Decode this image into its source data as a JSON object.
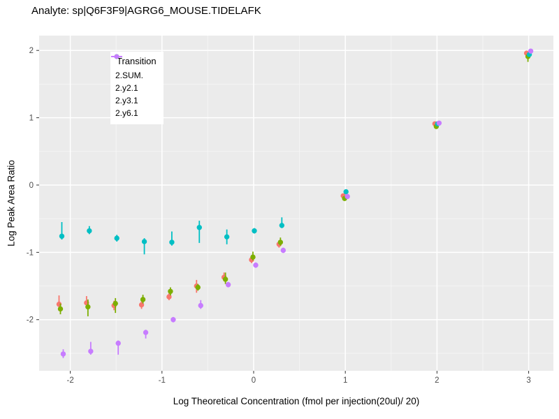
{
  "colors": {
    "panel_bg": "#EBEBEB",
    "grid_major": "#FFFFFF",
    "grid_minor": "#FFFFFF",
    "tick_mark": "#333333",
    "tick_text": "#4D4D4D",
    "outer_bg": "#FFFFFF"
  },
  "chart_data": {
    "type": "scatter",
    "subtype": "pointrange-with-error-bars",
    "title": "Analyte: sp|Q6F3F9|AGRG6_MOUSE.TIDELAFK",
    "xlabel": "Log Theoretical Concentration (fmol per injection(20ul)/ 20)",
    "ylabel": "Log Peak Area Ratio",
    "xlim": [
      -2.34,
      3.27
    ],
    "ylim": [
      -2.76,
      2.22
    ],
    "x_ticks": [
      -2,
      -1,
      0,
      1,
      2,
      3
    ],
    "y_ticks": [
      -2,
      -1,
      0,
      1,
      2
    ],
    "x_minor_ticks": [
      -1.5,
      -0.5,
      0.5,
      1.5,
      2.5
    ],
    "y_minor_ticks": [
      -2.5,
      -1.5,
      -0.5,
      0.5,
      1.5
    ],
    "grid": "white major and minor gridlines on grey panel",
    "legend": {
      "title": "Transition",
      "position": "top-left-inside"
    },
    "x": [
      -2.1,
      -1.8,
      -1.5,
      -1.2,
      -0.9,
      -0.6,
      -0.3,
      0,
      0.3,
      1,
      2,
      3
    ],
    "series": [
      {
        "name": "2.SUM.",
        "color": "#F8766D",
        "values": [
          -1.77,
          -1.75,
          -1.79,
          -1.78,
          -1.66,
          -1.5,
          -1.37,
          -1.11,
          -0.88,
          -0.16,
          0.91,
          1.96
        ],
        "lo": [
          -1.87,
          -1.82,
          -1.86,
          -1.84,
          -1.71,
          -1.6,
          -1.43,
          -1.16,
          -0.93,
          -0.18,
          0.89,
          1.94
        ],
        "hi": [
          -1.64,
          -1.65,
          -1.72,
          -1.72,
          -1.61,
          -1.41,
          -1.3,
          -1.06,
          -0.82,
          -0.14,
          0.93,
          1.98
        ]
      },
      {
        "name": "2.y2.1",
        "color": "#7CAE00",
        "values": [
          -1.84,
          -1.81,
          -1.76,
          -1.7,
          -1.58,
          -1.52,
          -1.4,
          -1.07,
          -0.85,
          -0.2,
          0.87,
          1.91
        ],
        "lo": [
          -1.92,
          -1.95,
          -1.9,
          -1.76,
          -1.64,
          -1.57,
          -1.47,
          -1.12,
          -0.9,
          -0.22,
          0.85,
          1.83
        ],
        "hi": [
          -1.76,
          -1.7,
          -1.68,
          -1.63,
          -1.52,
          -1.47,
          -1.3,
          -0.99,
          -0.78,
          -0.18,
          0.89,
          1.95
        ]
      },
      {
        "name": "2.y3.1",
        "color": "#00BFC4",
        "values": [
          -0.76,
          -0.68,
          -0.79,
          -0.84,
          -0.85,
          -0.63,
          -0.77,
          -0.68,
          -0.6,
          -0.1,
          0.91,
          1.94
        ],
        "lo": [
          -0.81,
          -0.73,
          -0.84,
          -1.03,
          -0.9,
          -0.86,
          -0.88,
          -0.72,
          -0.64,
          -0.12,
          0.89,
          1.92
        ],
        "hi": [
          -0.55,
          -0.61,
          -0.74,
          -0.79,
          -0.69,
          -0.53,
          -0.66,
          -0.64,
          -0.48,
          -0.08,
          0.93,
          1.96
        ]
      },
      {
        "name": "2.y6.1",
        "color": "#C77CFF",
        "values": [
          -2.51,
          -2.47,
          -2.35,
          -2.19,
          -2.0,
          -1.79,
          -1.48,
          -1.19,
          -0.97,
          -0.17,
          0.92,
          1.99
        ],
        "lo": [
          -2.57,
          -2.52,
          -2.52,
          -2.28,
          -2.04,
          -1.84,
          -1.52,
          -1.23,
          -1.01,
          -0.19,
          0.9,
          1.97
        ],
        "hi": [
          -2.44,
          -2.33,
          -2.31,
          -2.15,
          -1.96,
          -1.71,
          -1.44,
          -1.15,
          -0.93,
          -0.15,
          0.94,
          2.01
        ]
      }
    ]
  }
}
